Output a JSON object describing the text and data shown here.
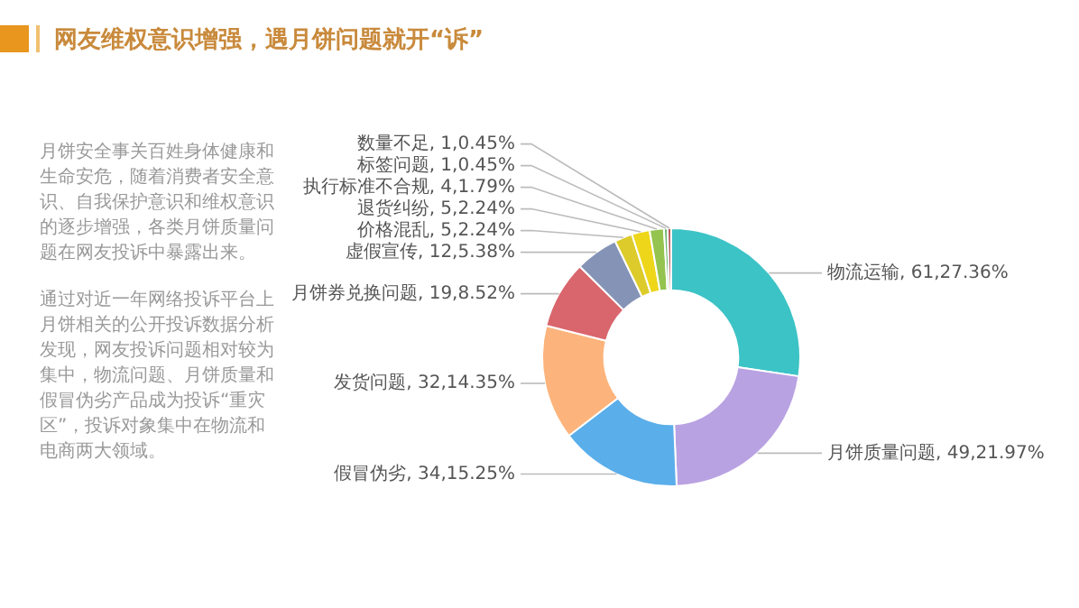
{
  "chart_data": {
    "type": "donut",
    "title": "网友维权意识增强，遇月饼问题就开“诉”",
    "categories": [
      "物流运输",
      "月饼质量问题",
      "假冒伪劣",
      "发货问题",
      "月饼券兑换问题",
      "虚假宣传",
      "价格混乱",
      "退货纠纷",
      "执行标准不合规",
      "标签问题",
      "数量不足"
    ],
    "values": [
      27.36,
      21.97,
      15.25,
      14.35,
      8.52,
      5.38,
      2.24,
      2.24,
      1.79,
      0.45,
      0.45
    ],
    "value_labels": [
      "61,27.36%",
      "49,21.97%",
      "34,15.25%",
      "32,14.35%",
      "19,8.52%",
      "12,5.38%",
      "5,2.24%",
      "5,2.24%",
      "4,1.79%",
      "1,0.45%",
      "1,0.45%"
    ],
    "colors": [
      "#3cc3c6",
      "#b9a2e2",
      "#5aaeea",
      "#fcb47c",
      "#d9666c",
      "#8493b6",
      "#dccb2a",
      "#eed61a",
      "#95c34f",
      "#6ab66c",
      "#b5585c"
    ],
    "annotations": [
      "月饼安全事关百姓身体健康和生命安危，随着消费者安全意识、自我保护意识和维权意识的逐步增强，各类月饼质量问题在网友投诉中暴露出来。",
      "通过对近一年网络投诉平台上月饼相关的公开投诉数据分析发现，网友投诉问题相对较为集中，物流问题、月饼质量和假冒伪劣产品成为投诉“重灾区”，投诉对象集中在物流和电商两大领域。"
    ]
  }
}
